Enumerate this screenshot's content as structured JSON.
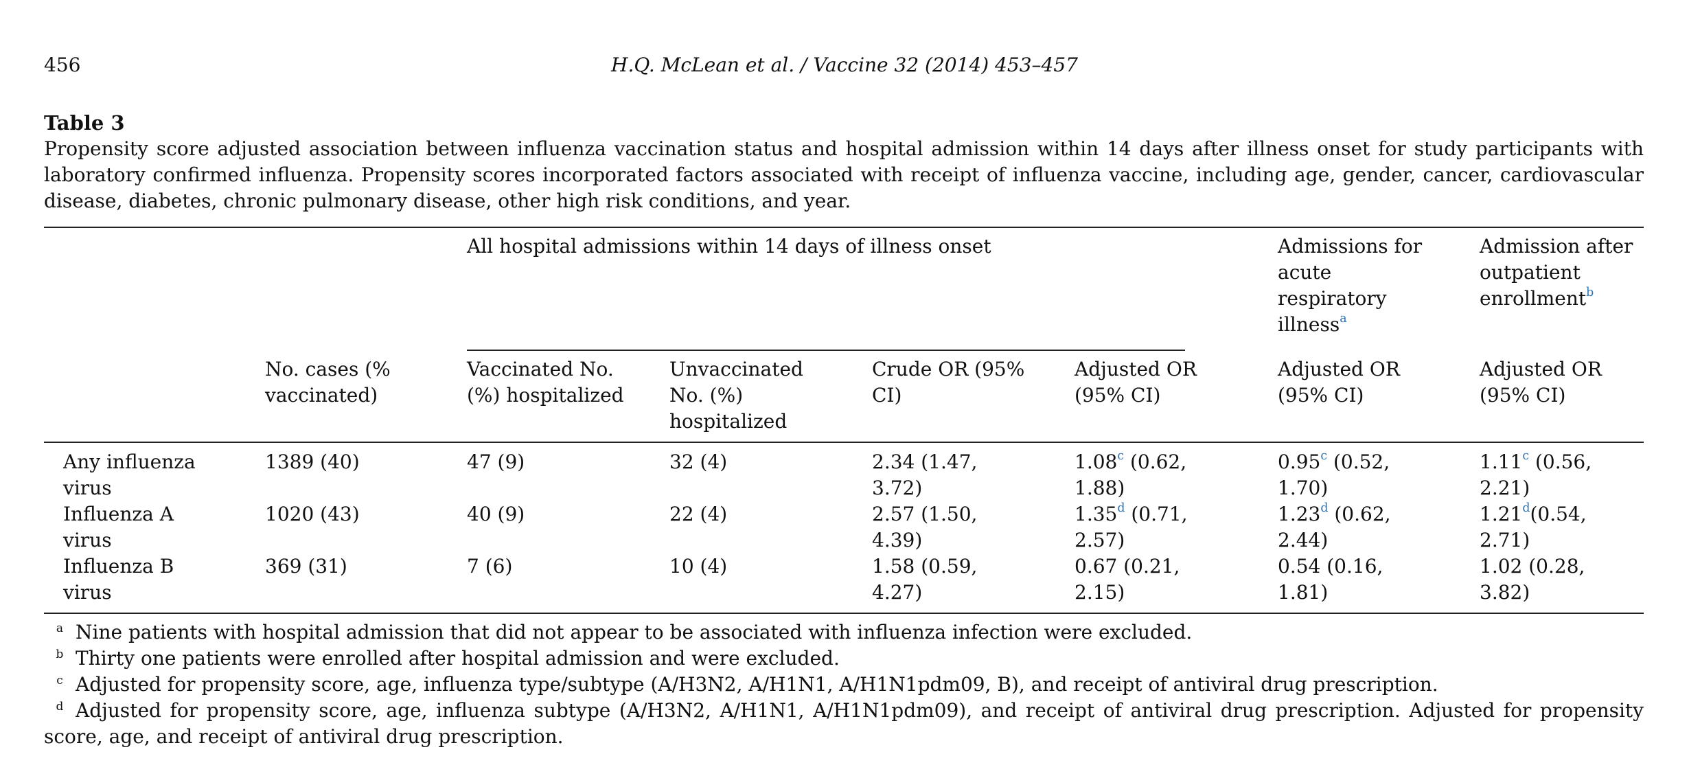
{
  "header": {
    "page_number": "456",
    "running_head": "H.Q. McLean et al. / Vaccine 32 (2014) 453–457"
  },
  "table": {
    "label": "Table 3",
    "caption": "Propensity score adjusted association between influenza vaccination status and hospital admission within 14 days after illness onset for study participants with laboratory confirmed influenza. Propensity scores incorporated factors associated with receipt of influenza vaccine, including age, gender, cancer, cardiovascular disease, diabetes, chronic pulmonary disease, other high risk conditions, and year.",
    "group_headers": {
      "all_admissions": "All hospital admissions within 14 days of illness onset",
      "acute_respiratory": "Admissions for acute respiratory illness",
      "acute_respiratory_mark": "a",
      "outpatient": "Admission after outpatient enrollment",
      "outpatient_mark": "b"
    },
    "col_headers": {
      "cases": "No. cases (% vaccinated)",
      "vaccinated": "Vaccinated No. (%) hospitalized",
      "unvaccinated": "Unvaccinated No. (%) hospitalized",
      "crude_or": "Crude OR (95% CI)",
      "adj_or_all": "Adjusted OR (95% CI)",
      "adj_or_ari": "Adjusted OR (95% CI)",
      "adj_or_out": "Adjusted OR (95% CI)"
    },
    "rows": [
      {
        "label": "Any influenza virus",
        "cases": "1389 (40)",
        "vaccinated": "47 (9)",
        "unvaccinated": "32 (4)",
        "crude": "2.34 (1.47, 3.72)",
        "adj_all": {
          "value": "1.08",
          "mark": "c",
          "ci": " (0.62, 1.88)"
        },
        "adj_ari": {
          "value": "0.95",
          "mark": "c",
          "ci": " (0.52, 1.70)"
        },
        "adj_out": {
          "value": "1.11",
          "mark": "c",
          "ci": " (0.56, 2.21)"
        }
      },
      {
        "label": "Influenza A virus",
        "cases": "1020 (43)",
        "vaccinated": "40 (9)",
        "unvaccinated": "22 (4)",
        "crude": "2.57 (1.50, 4.39)",
        "adj_all": {
          "value": "1.35",
          "mark": "d",
          "ci": " (0.71, 2.57)"
        },
        "adj_ari": {
          "value": "1.23",
          "mark": "d",
          "ci": " (0.62, 2.44)"
        },
        "adj_out": {
          "value": "1.21",
          "mark": "d",
          "ci": "(0.54, 2.71)"
        }
      },
      {
        "label": "Influenza B virus",
        "cases": "369 (31)",
        "vaccinated": "7 (6)",
        "unvaccinated": "10 (4)",
        "crude": "1.58 (0.59, 4.27)",
        "adj_all": {
          "value": "0.67 (0.21, 2.15)",
          "mark": "",
          "ci": ""
        },
        "adj_ari": {
          "value": "0.54 (0.16, 1.81)",
          "mark": "",
          "ci": ""
        },
        "adj_out": {
          "value": "1.02 (0.28, 3.82)",
          "mark": "",
          "ci": ""
        }
      }
    ],
    "footnotes": [
      {
        "mark": "a",
        "text": "Nine patients with hospital admission that did not appear to be associated with influenza infection were excluded."
      },
      {
        "mark": "b",
        "text": "Thirty one patients were enrolled after hospital admission and were excluded."
      },
      {
        "mark": "c",
        "text": "Adjusted for propensity score, age, influenza type/subtype (A/H3N2, A/H1N1, A/H1N1pdm09, B), and receipt of antiviral drug prescription."
      },
      {
        "mark": "d",
        "text": "Adjusted for propensity score, age, influenza subtype (A/H3N2, A/H1N1, A/H1N1pdm09), and receipt of antiviral drug prescription. Adjusted for propensity score, age, and receipt of antiviral drug prescription."
      }
    ]
  }
}
